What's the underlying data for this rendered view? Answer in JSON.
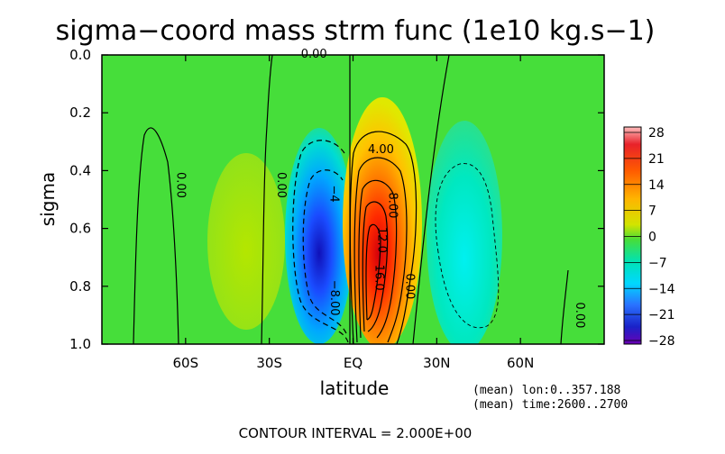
{
  "chart_data": {
    "type": "heatmap",
    "title": "sigma−coord mass strm func (1e10 kg.s−1)",
    "xlabel": "latitude",
    "ylabel": "sigma",
    "x_ticks": [
      {
        "value": -60,
        "label": "60S"
      },
      {
        "value": -30,
        "label": "30S"
      },
      {
        "value": 0,
        "label": "EQ"
      },
      {
        "value": 30,
        "label": "30N"
      },
      {
        "value": 60,
        "label": "60N"
      }
    ],
    "y_ticks": [
      {
        "value": 0.0,
        "label": "0.0"
      },
      {
        "value": 0.2,
        "label": "0.2"
      },
      {
        "value": 0.4,
        "label": "0.4"
      },
      {
        "value": 0.6,
        "label": "0.6"
      },
      {
        "value": 0.8,
        "label": "0.8"
      },
      {
        "value": 1.0,
        "label": "1.0"
      }
    ],
    "xlim": [
      -90,
      90
    ],
    "ylim": [
      0.0,
      1.0
    ],
    "y_inverted": true,
    "colorbar": {
      "range": [
        -28,
        28
      ],
      "ticks": [
        {
          "value": 28,
          "label": "28"
        },
        {
          "value": 21,
          "label": "21"
        },
        {
          "value": 14,
          "label": "14"
        },
        {
          "value": 7,
          "label": "7"
        },
        {
          "value": 0,
          "label": "0"
        },
        {
          "value": -7,
          "label": "−7"
        },
        {
          "value": -14,
          "label": "−14"
        },
        {
          "value": -21,
          "label": "−21"
        },
        {
          "value": -28,
          "label": "−28"
        }
      ]
    },
    "cells": [
      {
        "lat": -17,
        "sigma": 0.7,
        "value": -22
      },
      {
        "lat": 4,
        "sigma": 0.65,
        "value": 25
      },
      {
        "lat": -55,
        "sigma": 0.6,
        "value": 2
      },
      {
        "lat": 37,
        "sigma": 0.6,
        "value": -7
      }
    ],
    "contour_labels": [
      {
        "text": "0.00",
        "lat": -14,
        "sigma": 0.01
      },
      {
        "text": "0.00",
        "lat": -63,
        "sigma": 0.45
      },
      {
        "text": "0.00",
        "lat": -27,
        "sigma": 0.45
      },
      {
        "text": "4.00",
        "lat": 10,
        "sigma": 0.34
      },
      {
        "text": "8.00",
        "lat": 13,
        "sigma": 0.52
      },
      {
        "text": "12.0",
        "lat": 9,
        "sigma": 0.64
      },
      {
        "text": "16.0",
        "lat": 8,
        "sigma": 0.77
      },
      {
        "text": "−4",
        "lat": -8,
        "sigma": 0.48
      },
      {
        "text": "−8.00",
        "lat": -8,
        "sigma": 0.84
      },
      {
        "text": "0.00",
        "lat": 19,
        "sigma": 0.8
      },
      {
        "text": "0.00",
        "lat": 80,
        "sigma": 0.9
      }
    ],
    "annotations": [
      "(mean) lon:0..357.188",
      "(mean) time:2600..2700"
    ],
    "footer": "CONTOUR INTERVAL = 2.000E+00"
  }
}
